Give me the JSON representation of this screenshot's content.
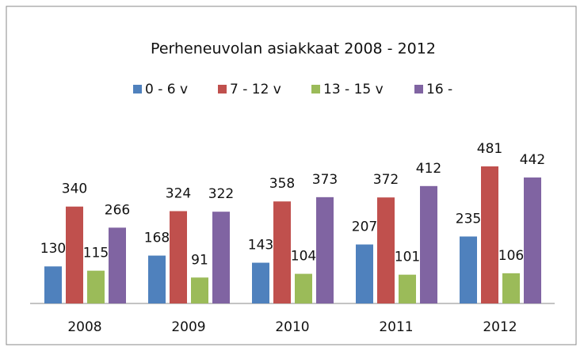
{
  "chart_data": {
    "type": "bar",
    "title": "Perheneuvolan asiakkaat 2008 - 2012",
    "categories": [
      "2008",
      "2009",
      "2010",
      "2011",
      "2012"
    ],
    "series": [
      {
        "name": "0 - 6 v",
        "color": "#4f81bd",
        "values": [
          130,
          168,
          143,
          207,
          235
        ]
      },
      {
        "name": "7 - 12 v",
        "color": "#c0504d",
        "values": [
          340,
          324,
          358,
          372,
          481
        ]
      },
      {
        "name": "13 - 15 v",
        "color": "#9bbb59",
        "values": [
          115,
          91,
          104,
          101,
          106
        ]
      },
      {
        "name": "16 -",
        "color": "#8064a2",
        "values": [
          266,
          322,
          373,
          412,
          442
        ]
      }
    ],
    "legend": "top"
  }
}
